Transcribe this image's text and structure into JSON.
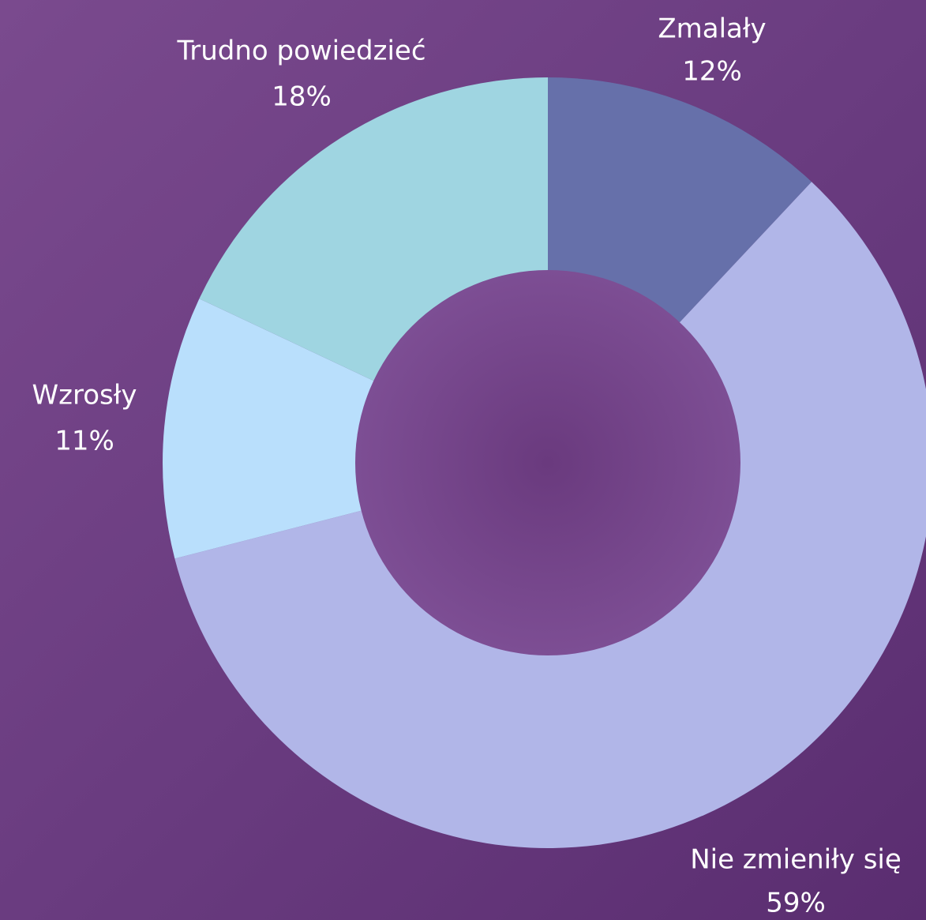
{
  "chart_data": {
    "type": "pie",
    "categories": [
      "Zmalały",
      "Nie zmieniły się",
      "Wzrosły",
      "Trudno powiedzieć"
    ],
    "values": [
      12,
      59,
      11,
      18
    ],
    "value_labels": [
      "12%",
      "59%",
      "11%",
      "18%"
    ],
    "colors": [
      "#6670aa",
      "#b1b6e8",
      "#b9dffc",
      "#9fd5e1"
    ]
  }
}
